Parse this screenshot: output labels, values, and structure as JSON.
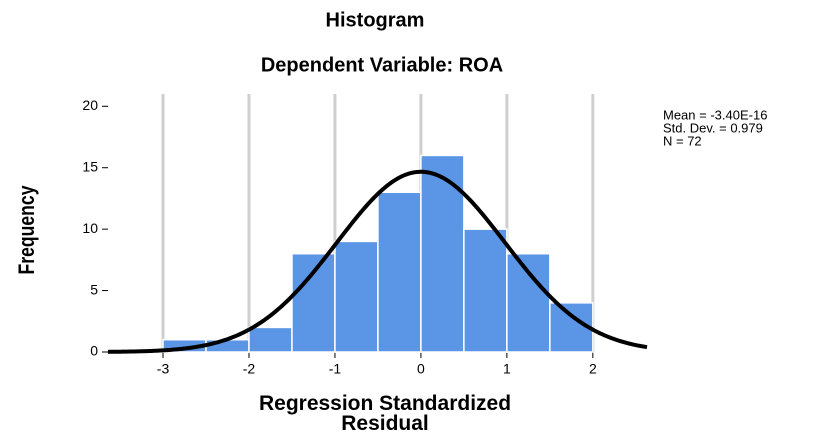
{
  "chart_data": {
    "type": "histogram",
    "title": "Histogram",
    "subtitle": "Dependent Variable: ROA",
    "xlabel": "Regression Standardized Residual",
    "ylabel": "Frequency",
    "bins": [
      -3,
      -2.5,
      -2,
      -1.5,
      -1,
      -0.5,
      0,
      0.5,
      1,
      1.5,
      2
    ],
    "counts": [
      1,
      1,
      2,
      8,
      9,
      13,
      16,
      10,
      8,
      4
    ],
    "color": "#5b95e6",
    "xlim": [
      -3.64,
      2.63
    ],
    "ylim": [
      0,
      21
    ],
    "xticks": [
      -3,
      -2,
      -1,
      0,
      1,
      2
    ],
    "yticks": [
      0,
      5,
      10,
      15,
      20
    ],
    "grid": true,
    "normal_curve": {
      "mean": {
        "value": -3.4e-16,
        "label": "Mean = -3.40E-16"
      },
      "sd": {
        "value": 0.979,
        "label": "Std. Dev. = 0.979"
      },
      "n": {
        "value": 72,
        "label": "N = 72"
      },
      "color": "#000000"
    }
  }
}
